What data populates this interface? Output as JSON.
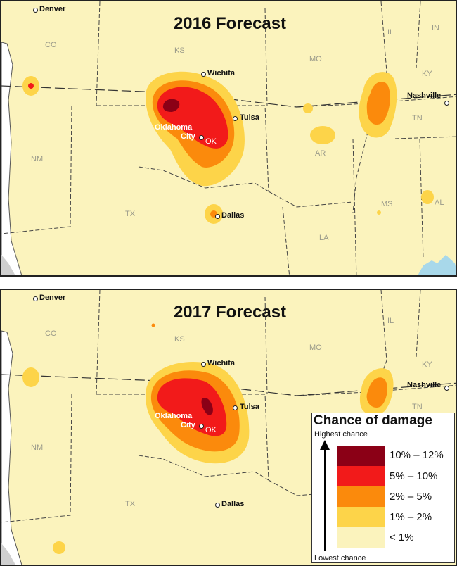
{
  "maps": [
    {
      "title": "2016 Forecast",
      "cities": {
        "denver": "Denver",
        "wichita": "Wichita",
        "tulsa": "Tulsa",
        "oklahoma_city_1": "Oklahoma",
        "oklahoma_city_2": "City",
        "dallas": "Dallas",
        "nashville": "Nashville"
      },
      "states": {
        "co": "CO",
        "ks": "KS",
        "mo": "MO",
        "il": "IL",
        "in": "IN",
        "ky": "KY",
        "tn": "TN",
        "nm": "NM",
        "ok": "OK",
        "ar": "AR",
        "ms": "MS",
        "al": "AL",
        "tx": "TX",
        "la": "LA"
      }
    },
    {
      "title": "2017 Forecast",
      "cities": {
        "denver": "Denver",
        "wichita": "Wichita",
        "tulsa": "Tulsa",
        "oklahoma_city_1": "Oklahoma",
        "oklahoma_city_2": "City",
        "dallas": "Dallas",
        "nashville": "Nashville"
      },
      "states": {
        "co": "CO",
        "ks": "KS",
        "mo": "MO",
        "il": "IL",
        "ky": "KY",
        "tn": "TN",
        "nm": "NM",
        "ok": "OK",
        "tx": "TX"
      }
    }
  ],
  "legend": {
    "title": "Chance of damage",
    "highest": "Highest chance",
    "lowest": "Lowest chance",
    "classes": [
      {
        "label": "10% – 12%",
        "color": "#8b0016"
      },
      {
        "label": "5% – 10%",
        "color": "#f21a1a"
      },
      {
        "label": "2% – 5%",
        "color": "#fb8a0c"
      },
      {
        "label": "1% – 2%",
        "color": "#fdd449"
      },
      {
        "label": "< 1%",
        "color": "#fbf3bd"
      }
    ]
  },
  "colors": {
    "background": "#fbf3bd",
    "border": "#222222",
    "boundary": "#333333",
    "water": "#a8d8ea",
    "land_gray": "#e6e6e6"
  }
}
